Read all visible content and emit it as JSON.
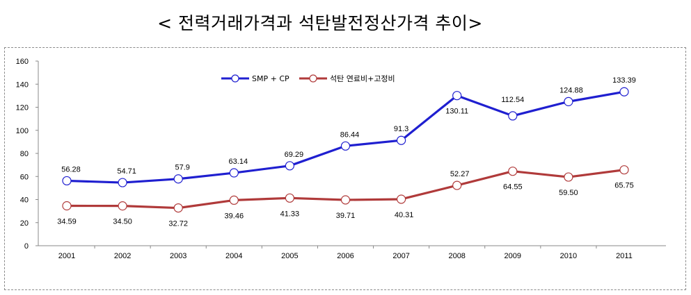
{
  "title": "< 전력거래가격과 석탄발전정산가격 추이>",
  "chart_data": {
    "type": "line",
    "title": "< 전력거래가격과 석탄발전정산가격 추이>",
    "xlabel": "",
    "ylabel": "",
    "categories": [
      "2001",
      "2002",
      "2003",
      "2004",
      "2005",
      "2006",
      "2007",
      "2008",
      "2009",
      "2010",
      "2011"
    ],
    "ylim": [
      0,
      160
    ],
    "yticks": [
      "0",
      "20",
      "40",
      "60",
      "80",
      "100",
      "120",
      "140",
      "160"
    ],
    "grid": false,
    "legend_position": "top-center",
    "series": [
      {
        "name": "SMP + CP",
        "color": "#1f1fd0",
        "values": [
          56.28,
          54.71,
          57.9,
          63.14,
          69.29,
          86.44,
          91.3,
          130.11,
          112.54,
          124.88,
          133.39
        ],
        "labels": [
          "56.28",
          "54.71",
          "57.9",
          "63.14",
          "69.29",
          "86.44",
          "91.3",
          "130.11",
          "112.54",
          "124.88",
          "133.39"
        ]
      },
      {
        "name": "석탄 연료비+고정비",
        "color": "#b03a3a",
        "values": [
          34.59,
          34.5,
          32.72,
          39.46,
          41.33,
          39.71,
          40.31,
          52.27,
          64.55,
          59.5,
          65.75
        ],
        "labels": [
          "34.59",
          "34.50",
          "32.72",
          "39.46",
          "41.33",
          "39.71",
          "40.31",
          "52.27",
          "64.55",
          "59.50",
          "65.75"
        ]
      }
    ]
  }
}
